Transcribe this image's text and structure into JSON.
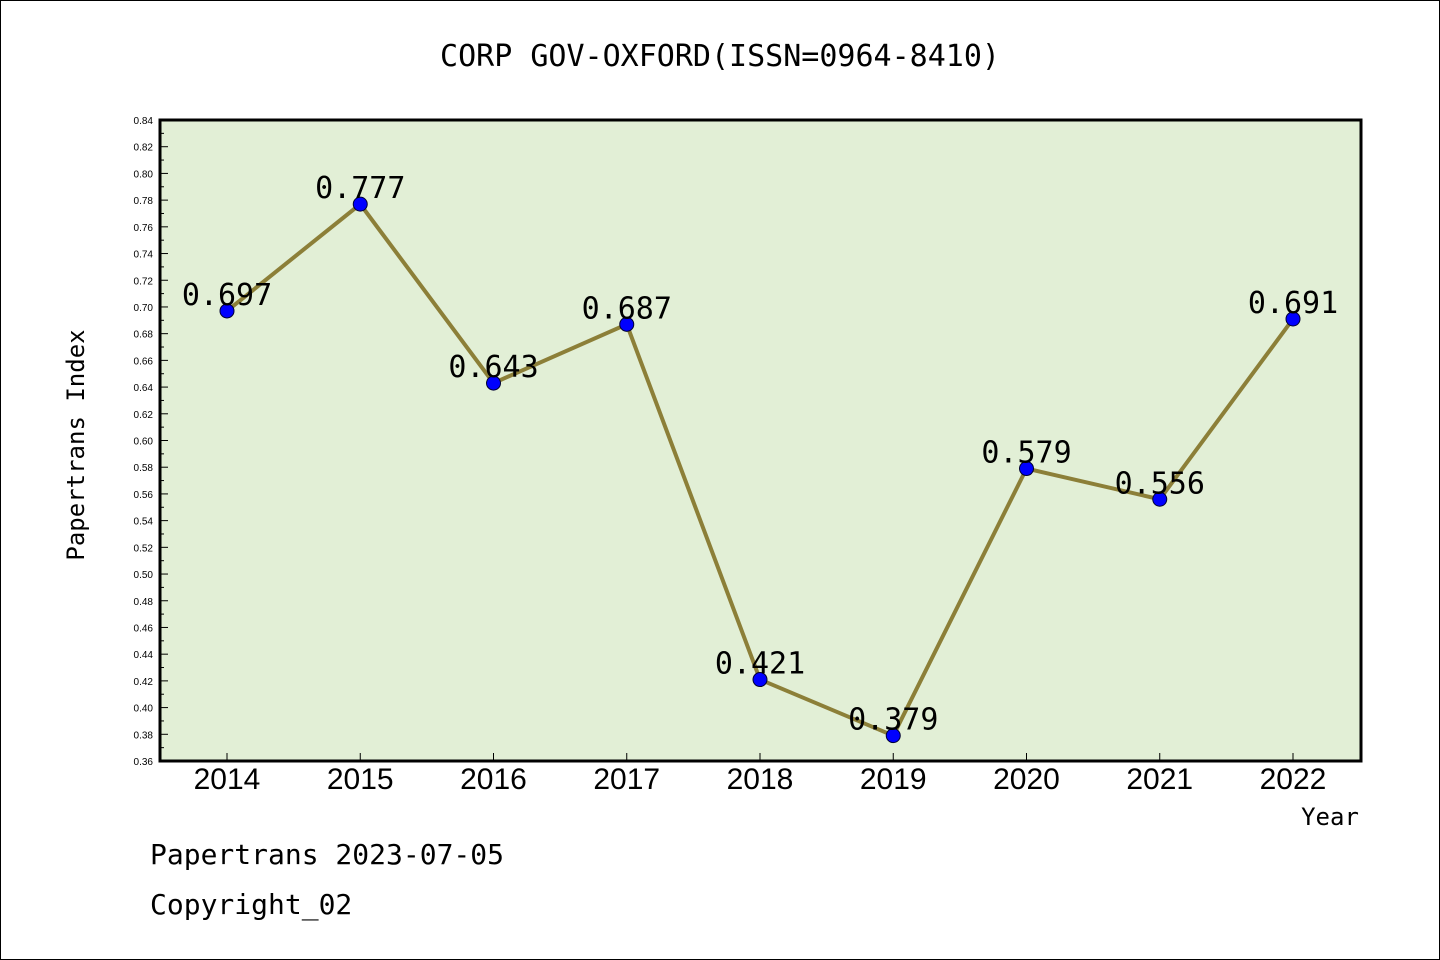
{
  "chart_data": {
    "type": "line",
    "title": "CORP GOV-OXFORD(ISSN=0964-8410)",
    "xlabel": "Year",
    "ylabel": "Papertrans Index",
    "categories": [
      "2014",
      "2015",
      "2016",
      "2017",
      "2018",
      "2019",
      "2020",
      "2021",
      "2022"
    ],
    "values": [
      0.697,
      0.777,
      0.643,
      0.687,
      0.421,
      0.379,
      0.579,
      0.556,
      0.691
    ],
    "data_labels": [
      "0.697",
      "0.777",
      "0.643",
      "0.687",
      "0.421",
      "0.379",
      "0.579",
      "0.556",
      "0.691"
    ],
    "ylim": [
      0.36,
      0.84
    ],
    "yticks": [
      "0.36",
      "0.38",
      "0.40",
      "0.42",
      "0.44",
      "0.46",
      "0.48",
      "0.50",
      "0.52",
      "0.54",
      "0.56",
      "0.58",
      "0.60",
      "0.62",
      "0.64",
      "0.66",
      "0.68",
      "0.70",
      "0.72",
      "0.74",
      "0.76",
      "0.78",
      "0.80",
      "0.82",
      "0.84"
    ],
    "grid": false,
    "colors": {
      "plot_bg": "#e2efd6",
      "line": "#8c7f38",
      "marker": "#0000ff"
    }
  },
  "footer": {
    "line1": "Papertrans 2023-07-05",
    "line2": "Copyright_02"
  }
}
